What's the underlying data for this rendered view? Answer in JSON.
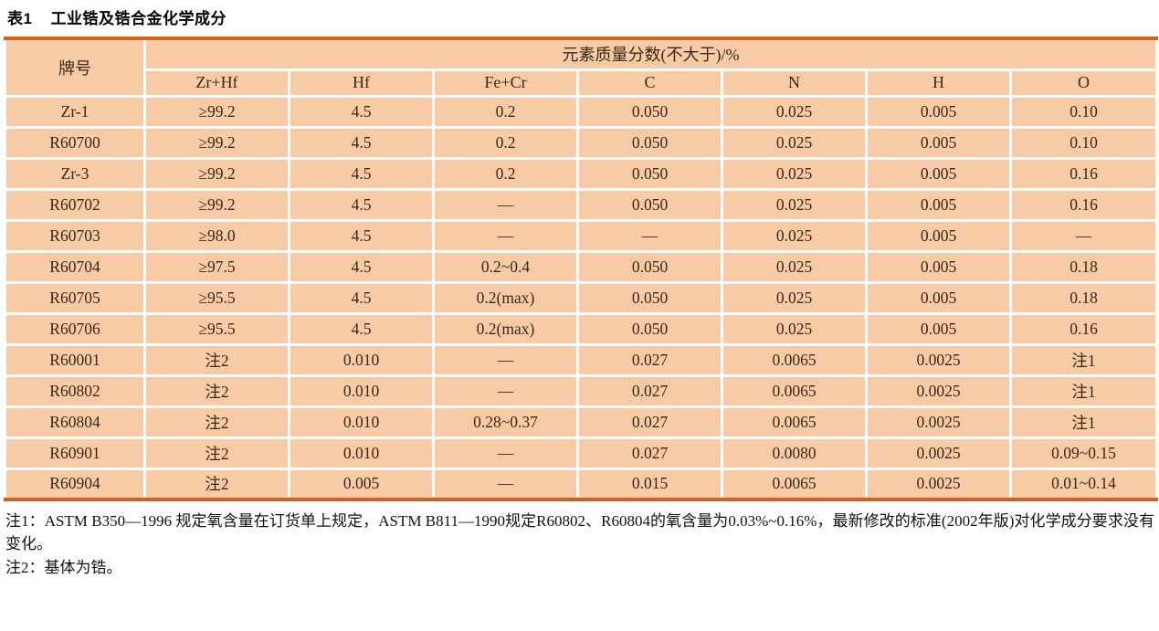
{
  "page": {
    "title_label": "表1",
    "title_text": "工业锆及锆合金化学成分"
  },
  "table": {
    "corner_header": "牌号",
    "group_header": "元素质量分数(不大于)/%",
    "columns": [
      "Zr+Hf",
      "Hf",
      "Fe+Cr",
      "C",
      "N",
      "H",
      "O"
    ],
    "rows": [
      {
        "grade": "Zr-1",
        "values": [
          "≥99.2",
          "4.5",
          "0.2",
          "0.050",
          "0.025",
          "0.005",
          "0.10"
        ]
      },
      {
        "grade": "R60700",
        "values": [
          "≥99.2",
          "4.5",
          "0.2",
          "0.050",
          "0.025",
          "0.005",
          "0.10"
        ]
      },
      {
        "grade": "Zr-3",
        "values": [
          "≥99.2",
          "4.5",
          "0.2",
          "0.050",
          "0.025",
          "0.005",
          "0.16"
        ]
      },
      {
        "grade": "R60702",
        "values": [
          "≥99.2",
          "4.5",
          "—",
          "0.050",
          "0.025",
          "0.005",
          "0.16"
        ]
      },
      {
        "grade": "R60703",
        "values": [
          "≥98.0",
          "4.5",
          "—",
          "—",
          "0.025",
          "0.005",
          "—"
        ]
      },
      {
        "grade": "R60704",
        "values": [
          "≥97.5",
          "4.5",
          "0.2~0.4",
          "0.050",
          "0.025",
          "0.005",
          "0.18"
        ]
      },
      {
        "grade": "R60705",
        "values": [
          "≥95.5",
          "4.5",
          "0.2(max)",
          "0.050",
          "0.025",
          "0.005",
          "0.18"
        ]
      },
      {
        "grade": "R60706",
        "values": [
          "≥95.5",
          "4.5",
          "0.2(max)",
          "0.050",
          "0.025",
          "0.005",
          "0.16"
        ]
      },
      {
        "grade": "R60001",
        "values": [
          "注2",
          "0.010",
          "—",
          "0.027",
          "0.0065",
          "0.0025",
          "注1"
        ]
      },
      {
        "grade": "R60802",
        "values": [
          "注2",
          "0.010",
          "—",
          "0.027",
          "0.0065",
          "0.0025",
          "注1"
        ]
      },
      {
        "grade": "R60804",
        "values": [
          "注2",
          "0.010",
          "0.28~0.37",
          "0.027",
          "0.0065",
          "0.0025",
          "注1"
        ]
      },
      {
        "grade": "R60901",
        "values": [
          "注2",
          "0.010",
          "—",
          "0.027",
          "0.0080",
          "0.0025",
          "0.09~0.15"
        ]
      },
      {
        "grade": "R60904",
        "values": [
          "注2",
          "0.005",
          "—",
          "0.015",
          "0.0065",
          "0.0025",
          "0.01~0.14"
        ]
      }
    ]
  },
  "notes": [
    "注1：ASTM B350—1996 规定氧含量在订货单上规定，ASTM B811—1990规定R60802、R60804的氧含量为0.03%~0.16%，最新修改的标准(2002年版)对化学成分要求没有变化。",
    "注2：基体为锆。"
  ],
  "colors": {
    "cell_background": "#f8cba7",
    "accent_border": "#d4601e",
    "cell_text": "#3a2817",
    "separator": "#ffffff"
  }
}
